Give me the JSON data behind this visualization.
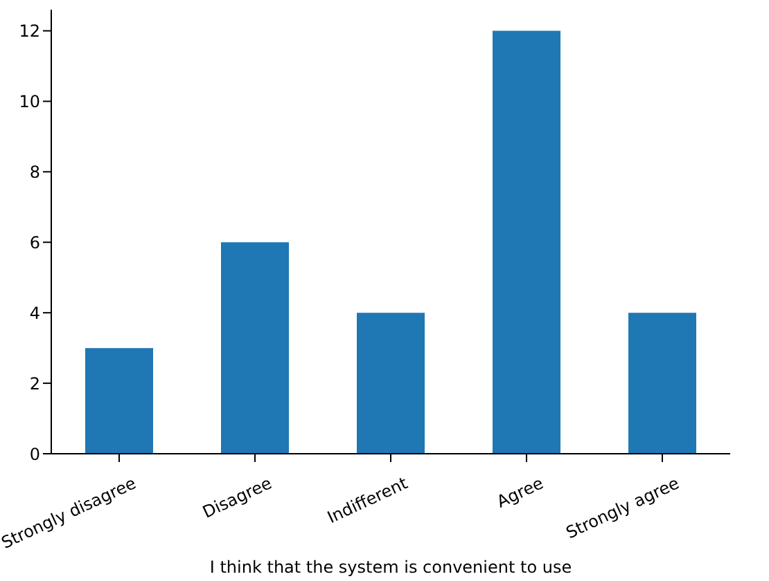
{
  "chart_data": {
    "type": "bar",
    "xlabel": "I think that the system is convenient to use",
    "categories": [
      "Strongly disagree",
      "Disagree",
      "Indifferent",
      "Agree",
      "Strongly agree"
    ],
    "values": [
      3,
      6,
      4,
      12,
      4
    ],
    "color": "#1f77b4",
    "ylim": [
      0,
      12.6
    ],
    "yticks": [
      0,
      2,
      4,
      6,
      8,
      10,
      12
    ]
  }
}
